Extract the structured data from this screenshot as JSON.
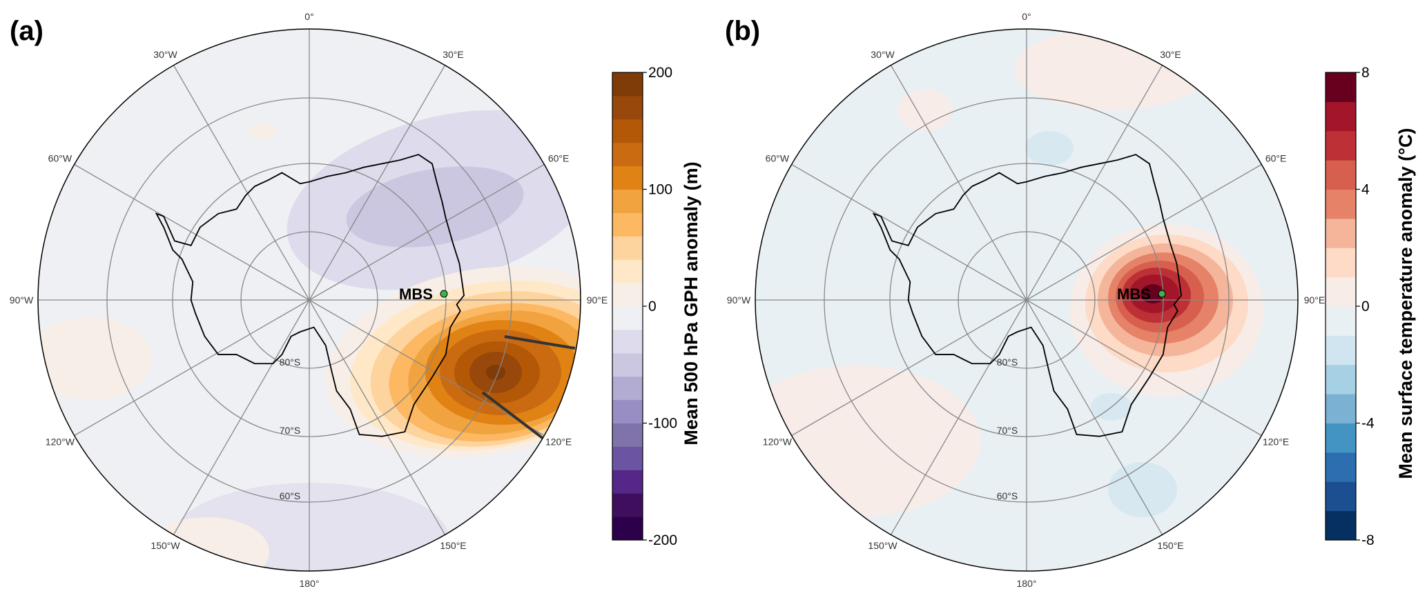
{
  "panels": [
    {
      "label": "(a)",
      "background": "#eff0f4",
      "colorbar": {
        "title": "Mean 500 hPa GPH anomaly (m)",
        "ticks": [
          "200",
          "100",
          "0",
          "-100",
          "-200"
        ],
        "range": [
          -200,
          200
        ],
        "colors": [
          "#2d004b",
          "#3f0f5e",
          "#542788",
          "#6b55a2",
          "#8073ac",
          "#998ec3",
          "#b2abd2",
          "#cbc7e1",
          "#dedbec",
          "#eff0f4",
          "#f7efe7",
          "#fee8c8",
          "#fdd49e",
          "#fdb863",
          "#f1a340",
          "#e08214",
          "#ca6a11",
          "#b35806",
          "#97480a",
          "#7f3b08"
        ]
      },
      "station": "MBS",
      "meridians": [
        "0°",
        "30°E",
        "60°E",
        "90°E",
        "120°E",
        "150°E",
        "180°",
        "150°W",
        "120°W",
        "90°W",
        "60°W",
        "30°W"
      ],
      "parallels": [
        "80°S",
        "70°S",
        "60°S"
      ]
    },
    {
      "label": "(b)",
      "background": "#e9f0f3",
      "colorbar": {
        "title": "Mean surface temperature anomaly (°C)",
        "ticks": [
          "8",
          "4",
          "0",
          "-4",
          "-8"
        ],
        "range": [
          -8,
          8
        ],
        "colors": [
          "#053061",
          "#1b4f8f",
          "#2c6eb0",
          "#4393c3",
          "#7bb2d4",
          "#a6d0e3",
          "#d1e5f0",
          "#e9f0f3",
          "#f7ece8",
          "#fddbc7",
          "#f4b59a",
          "#e58268",
          "#d6604d",
          "#bd3035",
          "#a31629",
          "#67001f"
        ]
      },
      "station": "MBS",
      "meridians": [
        "0°",
        "30°E",
        "60°E",
        "90°E",
        "120°E",
        "150°E",
        "180°",
        "150°W",
        "120°W",
        "90°W",
        "60°W",
        "30°W"
      ],
      "parallels": [
        "80°S",
        "70°S",
        "60°S"
      ]
    }
  ]
}
